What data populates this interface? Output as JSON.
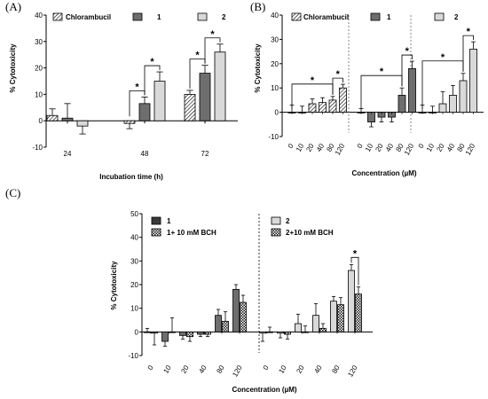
{
  "colors": {
    "chlorambucil": "#ffffff",
    "compound_1": "#6e6e6e",
    "compound_2": "#d9d9d9",
    "bch_1": "#3a3a3a",
    "bch_2": "#3a3a3a"
  },
  "chart_data": [
    {
      "panel": "(A)",
      "type": "bar",
      "xlabel": "Incubation time (h)",
      "ylabel": "% Cytotoxicity",
      "ylim": [
        -10,
        40
      ],
      "yticks": [
        -10,
        0,
        10,
        20,
        30,
        40
      ],
      "categories": [
        "24",
        "48",
        "72"
      ],
      "legend_position": "top",
      "series": [
        {
          "name": "Chlorambucil",
          "pattern": "hatch",
          "values": [
            2,
            -1,
            10
          ],
          "errors": [
            2.5,
            2,
            1.5
          ]
        },
        {
          "name": "1",
          "pattern": "dark",
          "values": [
            1,
            6.5,
            18
          ],
          "errors": [
            5.5,
            2.5,
            3
          ]
        },
        {
          "name": "2",
          "pattern": "light",
          "values": [
            -2,
            15,
            26
          ],
          "errors": [
            3,
            3.5,
            3
          ]
        }
      ],
      "significance": [
        {
          "category": "48",
          "pair": [
            "Chlorambucil",
            "1"
          ],
          "label": "*"
        },
        {
          "category": "48",
          "pair": [
            "1",
            "2"
          ],
          "label": "*"
        },
        {
          "category": "72",
          "pair": [
            "Chlorambucil",
            "1"
          ],
          "label": "*"
        },
        {
          "category": "72",
          "pair": [
            "1",
            "2"
          ],
          "label": "*"
        }
      ]
    },
    {
      "panel": "(B)",
      "type": "bar",
      "xlabel": "Concentration (µM)",
      "ylabel": "% Cytotoxicity",
      "ylim": [
        -10,
        40
      ],
      "yticks": [
        -10,
        0,
        10,
        20,
        30,
        40
      ],
      "legend_position": "top",
      "groups": [
        {
          "name": "Chlorambucil",
          "pattern": "hatch",
          "categories": [
            "0",
            "10",
            "20",
            "40",
            "80",
            "120"
          ],
          "values": [
            0,
            0,
            3.5,
            4,
            5,
            10
          ],
          "errors": [
            3,
            2.5,
            2,
            2,
            1.5,
            1.5
          ]
        },
        {
          "name": "1",
          "pattern": "dark",
          "categories": [
            "0",
            "10",
            "20",
            "40",
            "80",
            "120"
          ],
          "values": [
            0,
            -4,
            -2,
            -2,
            7,
            18
          ],
          "errors": [
            1.5,
            2,
            2,
            2,
            3,
            3
          ]
        },
        {
          "name": "2",
          "pattern": "light",
          "categories": [
            "0",
            "10",
            "20",
            "40",
            "80",
            "120"
          ],
          "values": [
            0,
            0,
            3.5,
            7,
            13,
            26
          ],
          "errors": [
            3,
            2.5,
            5,
            4,
            3,
            3
          ]
        }
      ],
      "significance": [
        {
          "group": "Chlorambucil",
          "from": "0",
          "to": "80",
          "label": "*"
        },
        {
          "group": "Chlorambucil",
          "from": "80",
          "to": "120",
          "label": "*"
        },
        {
          "group": "1",
          "from": "0",
          "to": "80",
          "label": "*"
        },
        {
          "group": "1",
          "from": "80",
          "to": "120",
          "label": "*"
        },
        {
          "group": "2",
          "from": "0",
          "to": "80",
          "label": "*"
        },
        {
          "group": "2",
          "from": "80",
          "to": "120",
          "label": "*"
        }
      ]
    },
    {
      "panel": "(C)",
      "type": "bar",
      "xlabel": "Concentration (µM)",
      "ylabel": "% Cytotoxicity",
      "ylim": [
        -10,
        50
      ],
      "yticks": [
        -10,
        0,
        10,
        20,
        30,
        40,
        50
      ],
      "legend_position": "top",
      "groups": [
        {
          "categories": [
            "0",
            "10",
            "20",
            "40",
            "80",
            "120"
          ],
          "series": [
            {
              "name": "1",
              "pattern": "dark",
              "values": [
                0,
                -4,
                -1.5,
                -1,
                7,
                18
              ],
              "errors": [
                1.5,
                2,
                1.5,
                1,
                2.5,
                2
              ]
            },
            {
              "name": "1+ 10 mM BCH",
              "pattern": "check",
              "values": [
                -0.5,
                0,
                -2,
                -1,
                4.5,
                12.5
              ],
              "errors": [
                5,
                6,
                2,
                1,
                4,
                3
              ]
            }
          ]
        },
        {
          "categories": [
            "0",
            "10",
            "20",
            "40",
            "80",
            "120"
          ],
          "series": [
            {
              "name": "2",
              "pattern": "light",
              "values": [
                -0.5,
                -0.5,
                3.5,
                7,
                13,
                26
              ],
              "errors": [
                3.5,
                2,
                4,
                5,
                2,
                2.5
              ]
            },
            {
              "name": "2+10 mM BCH",
              "pattern": "check",
              "values": [
                0,
                -1,
                0,
                1.5,
                11.5,
                16
              ],
              "errors": [
                2,
                2,
                2.5,
                2,
                3,
                3
              ]
            }
          ]
        }
      ],
      "significance": [
        {
          "group": 1,
          "category": "120",
          "pair": [
            "2",
            "2+10 mM BCH"
          ],
          "label": "*"
        }
      ]
    }
  ]
}
